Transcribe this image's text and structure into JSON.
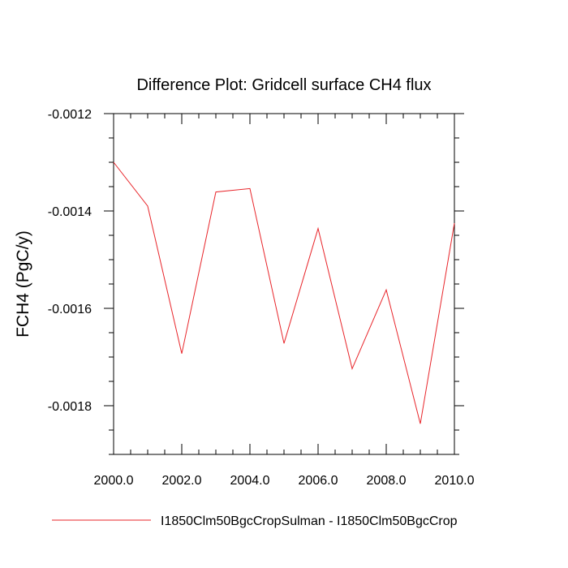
{
  "chart_data": {
    "type": "line",
    "title": "Difference Plot: Gridcell surface CH4 flux",
    "xlabel": "",
    "ylabel": "FCH4  (PgC/y)",
    "xlim": [
      2000.0,
      2010.0
    ],
    "ylim": [
      -0.0019,
      -0.0012
    ],
    "x_ticks": [
      {
        "value": 2000,
        "label": "2000.0"
      },
      {
        "value": 2002,
        "label": "2002.0"
      },
      {
        "value": 2004,
        "label": "2004.0"
      },
      {
        "value": 2006,
        "label": "2006.0"
      },
      {
        "value": 2008,
        "label": "2008.0"
      },
      {
        "value": 2010,
        "label": "2010.0"
      }
    ],
    "y_ticks": [
      {
        "value": -0.0012,
        "label": "-0.0012"
      },
      {
        "value": -0.0014,
        "label": "-0.0014"
      },
      {
        "value": -0.0016,
        "label": "-0.0016"
      },
      {
        "value": -0.0018,
        "label": "-0.0018"
      }
    ],
    "x": [
      2000,
      2001,
      2002,
      2003,
      2004,
      2005,
      2006,
      2007,
      2008,
      2009,
      2010
    ],
    "series": [
      {
        "name": "I1850Clm50BgcCropSulman - I1850Clm50BgcCrop",
        "color": "#e8252a",
        "values": [
          -0.0013,
          -0.00139,
          -0.001693,
          -0.001361,
          -0.001354,
          -0.001672,
          -0.001436,
          -0.001724,
          -0.001562,
          -0.001837,
          -0.001425
        ]
      }
    ],
    "grid": false,
    "legend_position": "bottom"
  }
}
